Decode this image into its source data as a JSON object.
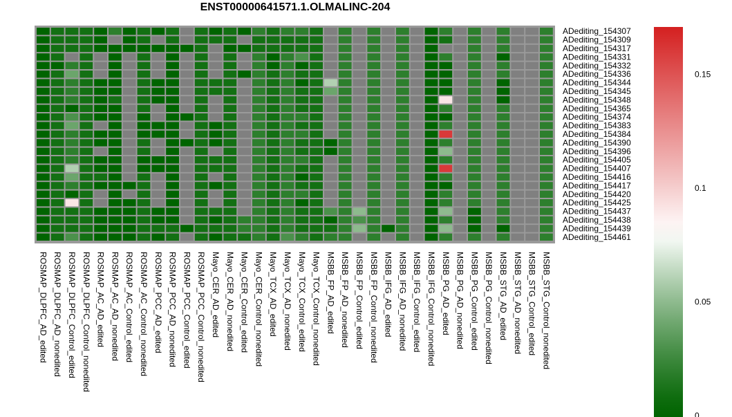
{
  "chart_data": {
    "type": "heatmap",
    "title": "ENST00000641571.1.OLMALINC-204",
    "colorscale": {
      "low": "#006400",
      "mid": "#ffffff",
      "high": "#d42020",
      "missing": "#808080",
      "min": 0,
      "max": 0.17,
      "ticks": [
        {
          "value": 0,
          "label": "0"
        },
        {
          "value": 0.05,
          "label": "0.05"
        },
        {
          "value": 0.1,
          "label": "0.1"
        },
        {
          "value": 0.15,
          "label": "0.15"
        }
      ]
    },
    "rows": [
      "ADediting_154307",
      "ADediting_154309",
      "ADediting_154317",
      "ADediting_154331",
      "ADediting_154332",
      "ADediting_154336",
      "ADediting_154344",
      "ADediting_154345",
      "ADediting_154348",
      "ADediting_154365",
      "ADediting_154374",
      "ADediting_154383",
      "ADediting_154384",
      "ADediting_154390",
      "ADediting_154396",
      "ADediting_154405",
      "ADediting_154407",
      "ADediting_154416",
      "ADediting_154417",
      "ADediting_154420",
      "ADediting_154425",
      "ADediting_154437",
      "ADediting_154438",
      "ADediting_154439",
      "ADediting_154461"
    ],
    "columns": [
      "ROSMAP_DLPFC_AD_edited",
      "ROSMAP_DLPFC_AD_nonedited",
      "ROSMAP_DLPFC_Control_edited",
      "ROSMAP_DLPFC_Control_nonedited",
      "ROSMAP_AC_AD_edited",
      "ROSMAP_AC_AD_nonedited",
      "ROSMAP_AC_Control_edited",
      "ROSMAP_AC_Control_nonedited",
      "ROSMAP_PCC_AD_edited",
      "ROSMAP_PCC_AD_nonedited",
      "ROSMAP_PCC_Control_edited",
      "ROSMAP_PCC_Control_nonedited",
      "Mayo_CER_AD_edited",
      "Mayo_CER_AD_nonedited",
      "Mayo_CER_Control_edited",
      "Mayo_CER_Control_nonedited",
      "Mayo_TCX_AD_edited",
      "Mayo_TCX_AD_nonedited",
      "Mayo_TCX_Control_edited",
      "Mayo_TCX_Control_nonedited",
      "MSBB_FP_AD_edited",
      "MSBB_FP_AD_nonedited",
      "MSBB_FP_Control_edited",
      "MSBB_FP_Control_nonedited",
      "MSBB_IFG_AD_edited",
      "MSBB_IFG_AD_nonedited",
      "MSBB_IFG_Control_edited",
      "MSBB_IFG_Control_nonedited",
      "MSBB_PG_AD_edited",
      "MSBB_PG_AD_nonedited",
      "MSBB_PG_Control_edited",
      "MSBB_PG_Control_nonedited",
      "MSBB_STG_AD_edited",
      "MSBB_STG_AD_nonedited",
      "MSBB_STG_Control_edited",
      "MSBB_STG_Control_nonedited"
    ],
    "values": [
      [
        0,
        0.01,
        0.01,
        0.01,
        0,
        0.02,
        0,
        0.01,
        0,
        0.01,
        null,
        0.01,
        0,
        0.01,
        0,
        0.02,
        0.01,
        0.02,
        0.02,
        0.01,
        null,
        0.02,
        null,
        0.02,
        null,
        0.02,
        null,
        0,
        0.02,
        null,
        0.02,
        null,
        0.02,
        null,
        null,
        0.02
      ],
      [
        0,
        0.01,
        0.01,
        0.01,
        0,
        null,
        0,
        0.01,
        null,
        0.01,
        null,
        0.01,
        0.01,
        0.01,
        null,
        0.01,
        0.01,
        0.01,
        0.01,
        0.01,
        null,
        0.02,
        null,
        0.02,
        null,
        0.02,
        null,
        0,
        0.01,
        null,
        0.02,
        null,
        0.02,
        null,
        null,
        0.02
      ],
      [
        0,
        0.01,
        0.01,
        0.01,
        0,
        0,
        0,
        0,
        0,
        0,
        0,
        0.01,
        null,
        0,
        0,
        0.01,
        0.01,
        0.01,
        0.01,
        0.01,
        null,
        0.02,
        null,
        0.02,
        null,
        0.02,
        null,
        0,
        null,
        null,
        0.02,
        null,
        0.02,
        null,
        null,
        0.02
      ],
      [
        0,
        0.01,
        null,
        0.01,
        null,
        0,
        null,
        0.01,
        null,
        0,
        null,
        0.01,
        null,
        0.01,
        null,
        0.02,
        0,
        0.02,
        0.03,
        0.01,
        null,
        0.02,
        null,
        0.02,
        null,
        0.02,
        null,
        0,
        0.02,
        null,
        0.02,
        null,
        0,
        null,
        null,
        0.02
      ],
      [
        0,
        0,
        0.02,
        0.01,
        null,
        0,
        null,
        0.01,
        null,
        0,
        null,
        0.01,
        null,
        0.01,
        null,
        0.02,
        0,
        0.02,
        0,
        0.01,
        null,
        0.02,
        null,
        0.02,
        null,
        0.02,
        null,
        0,
        0,
        null,
        0.02,
        null,
        0.02,
        null,
        null,
        0.02
      ],
      [
        0,
        0.01,
        0.04,
        0.01,
        null,
        0,
        null,
        0.01,
        null,
        0,
        null,
        0.01,
        null,
        0.01,
        0,
        0.02,
        0.01,
        0.02,
        0.01,
        0.01,
        null,
        0.02,
        null,
        0.02,
        null,
        0.02,
        null,
        0,
        0,
        null,
        0.02,
        null,
        0.02,
        null,
        null,
        0.02
      ],
      [
        0,
        0.01,
        0.02,
        0.01,
        0,
        0,
        null,
        0.01,
        0,
        0,
        null,
        0.01,
        0.01,
        0.01,
        null,
        0.02,
        0.01,
        0.02,
        0,
        0.01,
        0.06,
        0.02,
        null,
        0.02,
        null,
        0.02,
        null,
        0,
        0,
        null,
        0.02,
        null,
        0,
        null,
        null,
        0.02
      ],
      [
        0,
        0.01,
        0.02,
        0.01,
        0,
        0,
        null,
        0.01,
        0,
        0,
        null,
        0.01,
        0.01,
        0.01,
        null,
        0.02,
        0.01,
        0.02,
        0.01,
        0.01,
        0.04,
        0.02,
        null,
        0.02,
        null,
        0.02,
        null,
        0,
        0,
        null,
        0.02,
        null,
        0,
        null,
        null,
        0.02
      ],
      [
        0,
        0.01,
        0.02,
        0.01,
        0,
        0.01,
        null,
        0.01,
        0,
        0,
        null,
        0.01,
        null,
        0.01,
        null,
        0.02,
        0.01,
        0.02,
        0.01,
        0.01,
        null,
        0.02,
        null,
        0.02,
        null,
        0.02,
        null,
        0,
        0.09,
        null,
        0.02,
        null,
        0,
        null,
        null,
        0.02
      ],
      [
        0,
        0.01,
        0,
        0.01,
        0,
        0,
        null,
        0.01,
        null,
        0,
        null,
        0.01,
        null,
        0.01,
        null,
        0.02,
        0.01,
        0.02,
        0.01,
        0.01,
        null,
        0.02,
        null,
        0.02,
        null,
        0.02,
        null,
        0,
        0.02,
        null,
        0.02,
        null,
        0.02,
        null,
        null,
        0.02
      ],
      [
        0,
        0.01,
        0.03,
        0.01,
        0,
        0,
        null,
        0,
        null,
        0,
        0,
        0.01,
        null,
        0.01,
        null,
        0.02,
        0.01,
        0.02,
        0.02,
        0.01,
        null,
        0.02,
        null,
        0.02,
        null,
        0.02,
        null,
        0,
        0,
        null,
        0.02,
        null,
        0.02,
        null,
        null,
        0.02
      ],
      [
        0,
        0.01,
        0.04,
        0.01,
        null,
        0,
        null,
        0,
        0,
        0,
        null,
        0.01,
        0,
        0.01,
        null,
        0.02,
        0.01,
        0.02,
        0.01,
        0.01,
        null,
        0.02,
        null,
        0.02,
        null,
        0.02,
        null,
        0,
        0.02,
        null,
        0.02,
        null,
        0.02,
        null,
        null,
        0.02
      ],
      [
        0,
        0.01,
        0.02,
        0.01,
        0,
        0,
        null,
        0,
        0,
        0,
        null,
        0.01,
        0,
        0.01,
        null,
        0.02,
        0.01,
        0.02,
        0.02,
        0.01,
        null,
        0.02,
        null,
        0.02,
        null,
        0.02,
        null,
        0,
        0.16,
        null,
        0.02,
        null,
        0.02,
        null,
        null,
        0.02
      ],
      [
        0,
        0.01,
        0.02,
        0.01,
        0,
        0,
        null,
        0.01,
        null,
        0,
        0,
        0.01,
        0,
        0.01,
        null,
        0.02,
        0.01,
        0.02,
        0.01,
        0.01,
        0,
        0.02,
        null,
        0.02,
        null,
        0.02,
        null,
        0,
        0.02,
        null,
        0.02,
        null,
        0.02,
        null,
        null,
        0.02
      ],
      [
        0,
        0.01,
        0.02,
        0.01,
        null,
        0,
        null,
        0.01,
        null,
        0,
        null,
        0.01,
        null,
        0.01,
        null,
        0.02,
        0.01,
        0.02,
        0.01,
        0.01,
        0,
        0.02,
        null,
        0.02,
        null,
        0.02,
        null,
        0,
        0.05,
        null,
        0.02,
        null,
        0.02,
        null,
        null,
        0.02
      ],
      [
        0,
        0.01,
        0.02,
        0.01,
        0,
        0,
        null,
        0,
        0,
        0,
        null,
        0.01,
        0.01,
        0.01,
        null,
        0.02,
        0.01,
        0.02,
        0.02,
        0.01,
        null,
        0.02,
        null,
        0.02,
        null,
        0.02,
        null,
        0,
        0.02,
        null,
        0.02,
        null,
        0.02,
        null,
        null,
        0.02
      ],
      [
        0,
        0.01,
        0.06,
        0.01,
        0,
        0,
        null,
        0,
        0,
        0,
        null,
        0.01,
        0.01,
        0.01,
        null,
        0.02,
        0.01,
        0.02,
        0.01,
        0.01,
        null,
        0.02,
        null,
        0.02,
        null,
        0.02,
        null,
        0,
        0.16,
        null,
        0.02,
        null,
        0.02,
        null,
        null,
        0.02
      ],
      [
        0,
        0.01,
        0.04,
        0.01,
        0.01,
        0,
        null,
        0.01,
        null,
        0,
        null,
        0.01,
        null,
        0.01,
        null,
        0.02,
        0.01,
        0.02,
        0,
        0.01,
        null,
        0.02,
        null,
        0.02,
        null,
        0.02,
        null,
        0,
        0.02,
        null,
        0.02,
        null,
        0.02,
        null,
        null,
        0.02
      ],
      [
        0,
        0.01,
        0.02,
        0.01,
        0,
        0,
        0,
        0.01,
        null,
        0,
        null,
        0.01,
        0,
        0.01,
        null,
        0.02,
        0.01,
        0.02,
        0.01,
        0.01,
        null,
        0.02,
        null,
        0.02,
        null,
        0.02,
        null,
        0,
        0,
        null,
        0.02,
        null,
        0.02,
        null,
        null,
        0.02
      ],
      [
        0,
        0.01,
        0,
        0.01,
        null,
        0,
        null,
        0.01,
        null,
        0,
        null,
        0.01,
        null,
        0.01,
        null,
        0.02,
        0.01,
        0.02,
        0.02,
        0.01,
        null,
        0.02,
        null,
        0.02,
        null,
        0.02,
        null,
        0,
        0.02,
        null,
        0.02,
        null,
        0.02,
        null,
        null,
        0.02
      ],
      [
        0,
        0.01,
        0.09,
        0.01,
        null,
        0,
        0,
        0.01,
        null,
        0,
        null,
        0.01,
        null,
        0.01,
        null,
        0.02,
        0.01,
        0.02,
        0,
        0.01,
        null,
        0.02,
        null,
        0.02,
        null,
        0.02,
        null,
        0,
        0.02,
        null,
        0.02,
        null,
        0.02,
        null,
        null,
        0.02
      ],
      [
        0,
        0.01,
        0.01,
        0.01,
        0,
        0,
        0,
        0.01,
        0,
        0,
        null,
        0.01,
        0.01,
        0.01,
        null,
        0.02,
        0.01,
        0.02,
        0.01,
        0.01,
        0.03,
        0.02,
        0.05,
        0.02,
        null,
        0.02,
        null,
        0,
        0.05,
        null,
        0,
        null,
        0.02,
        null,
        null,
        0.02
      ],
      [
        0,
        0.01,
        0.01,
        0.01,
        0,
        0,
        0,
        0.01,
        0,
        0,
        null,
        0.01,
        0,
        0.01,
        0.02,
        0.02,
        0.01,
        0.02,
        0.01,
        0.01,
        0,
        0.02,
        0.03,
        0.02,
        null,
        0.02,
        null,
        0,
        0.02,
        null,
        0,
        null,
        0.02,
        null,
        null,
        0.02
      ],
      [
        0,
        0.01,
        0.01,
        0.01,
        0,
        0,
        0,
        0.01,
        0.01,
        0.01,
        0,
        0.01,
        0.01,
        0.01,
        0.02,
        0.02,
        0.01,
        0.02,
        0.01,
        0.01,
        0.01,
        0.02,
        0.05,
        0.02,
        0,
        0.02,
        null,
        0,
        0.05,
        null,
        0,
        null,
        0,
        null,
        null,
        0.02
      ],
      [
        0,
        0.01,
        0.03,
        0.01,
        0,
        0,
        0,
        0.01,
        0,
        0.01,
        null,
        0.01,
        0,
        0.01,
        0.01,
        0.02,
        0.01,
        0.03,
        0.02,
        0.01,
        0.02,
        0.02,
        null,
        0.02,
        null,
        0.02,
        null,
        0,
        0.02,
        null,
        0.02,
        null,
        0.02,
        null,
        null,
        0.02
      ]
    ]
  }
}
